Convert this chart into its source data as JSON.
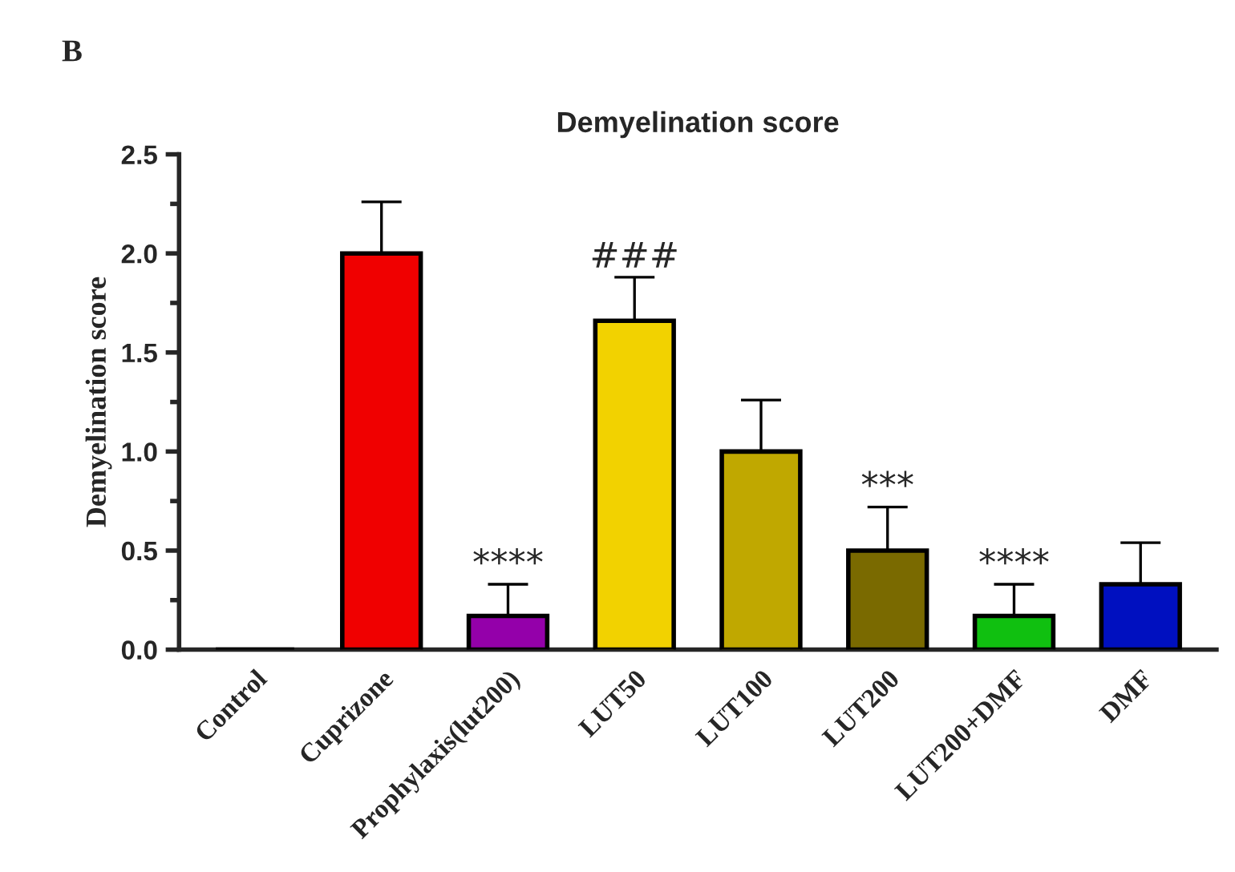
{
  "chart_data": {
    "type": "bar",
    "title": "Demyelination score",
    "ylabel": "Demyelination score",
    "categories": [
      "Control",
      "Cuprizone",
      "Prophylaxis(lut200)",
      "LUT50",
      "LUT100",
      "LUT200",
      "LUT200+DMF",
      "DMF"
    ],
    "values": [
      0,
      2.0,
      0.17,
      1.66,
      1.0,
      0.5,
      0.17,
      0.33
    ],
    "colors": [
      "#000000",
      "#f00000",
      "#9400aa",
      "#f2d200",
      "#c0a800",
      "#7a6a00",
      "#10c010",
      "#0010c0"
    ],
    "errors": [
      null,
      [
        2.0,
        2.26
      ],
      [
        0.17,
        0.33
      ],
      [
        1.66,
        1.88
      ],
      [
        1.0,
        1.26
      ],
      [
        0.5,
        0.72
      ],
      [
        0.17,
        0.33
      ],
      [
        0.33,
        0.54
      ]
    ],
    "ylim": [
      0,
      2.5
    ],
    "yticks": [
      {
        "value": 0,
        "label": "0.0"
      },
      {
        "value": 0.5,
        "label": "0.5"
      },
      {
        "value": 1.0,
        "label": "1.0"
      },
      {
        "value": 1.5,
        "label": "1.5"
      },
      {
        "value": 2.0,
        "label": "2.0"
      },
      {
        "value": 2.5,
        "label": "2.5"
      }
    ],
    "annotations": [
      "B",
      {
        "text": "****",
        "x": "Prophylaxis(lut200)",
        "y": 0.33
      },
      {
        "text": "###",
        "x": "LUT50",
        "y": 1.88
      },
      {
        "text": "***",
        "x": "LUT200",
        "y": 0.72
      },
      {
        "text": "****",
        "x": "LUT200+DMF",
        "y": 0.33
      }
    ],
    "grid": false,
    "legend": false
  }
}
